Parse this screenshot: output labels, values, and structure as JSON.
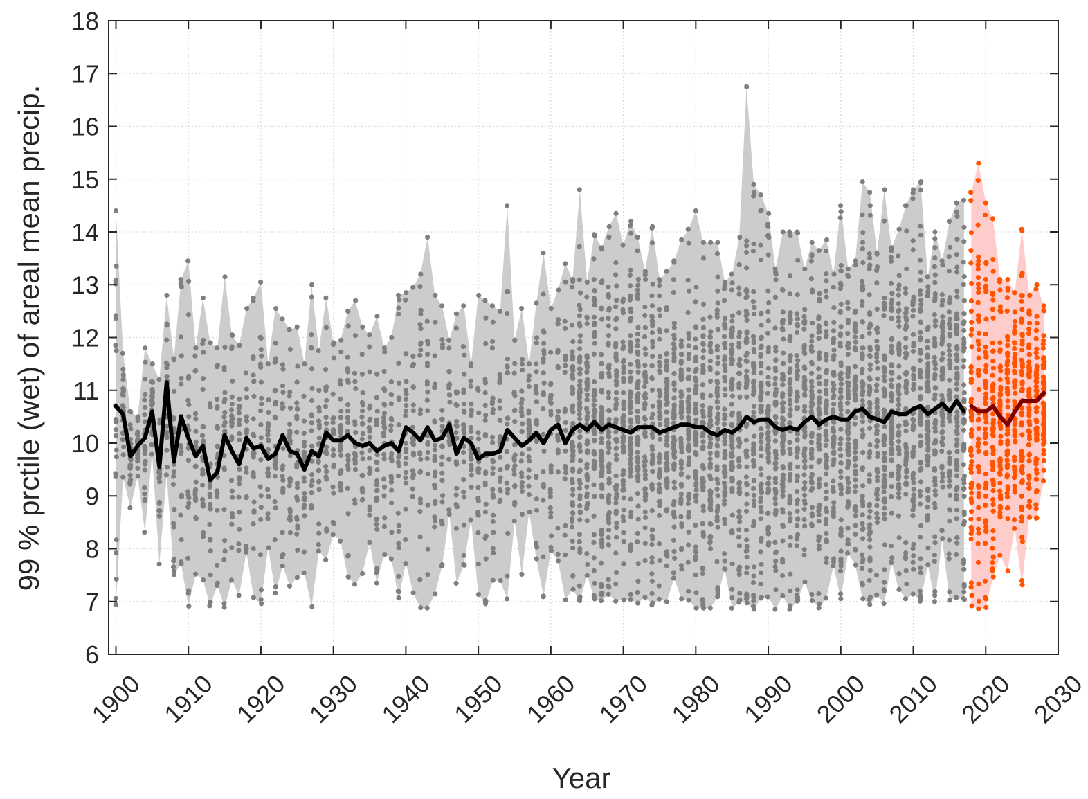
{
  "chart_data": {
    "type": "line",
    "title": "",
    "xlabel": "Year",
    "ylabel": "99 % prctile (wet) of areal mean precip.",
    "xlim": [
      1899,
      2030
    ],
    "ylim": [
      6,
      18
    ],
    "grid": true,
    "legend": "none",
    "x_ticks": [
      "1900",
      "1910",
      "1920",
      "1930",
      "1940",
      "1950",
      "1960",
      "1970",
      "1980",
      "1990",
      "2000",
      "2010",
      "2020",
      "2030"
    ],
    "y_ticks": [
      "6",
      "7",
      "8",
      "9",
      "10",
      "11",
      "12",
      "13",
      "14",
      "15",
      "16",
      "17",
      "18"
    ],
    "colors": {
      "observed_band": "#cccccc",
      "observed_points": "#7f7f7f",
      "observed_mean": "#000000",
      "forecast_band": "#ffcccc",
      "forecast_points": "#ff5500",
      "forecast_mean": "#800000"
    },
    "series": [
      {
        "role": "observed-mean",
        "x": [
          1900,
          1901,
          1902,
          1903,
          1904,
          1905,
          1906,
          1907,
          1908,
          1909,
          1910,
          1911,
          1912,
          1913,
          1914,
          1915,
          1916,
          1917,
          1918,
          1919,
          1920,
          1921,
          1922,
          1923,
          1924,
          1925,
          1926,
          1927,
          1928,
          1929,
          1930,
          1931,
          1932,
          1933,
          1934,
          1935,
          1936,
          1937,
          1938,
          1939,
          1940,
          1941,
          1942,
          1943,
          1944,
          1945,
          1946,
          1947,
          1948,
          1949,
          1950,
          1951,
          1952,
          1953,
          1954,
          1955,
          1956,
          1957,
          1958,
          1959,
          1960,
          1961,
          1962,
          1963,
          1964,
          1965,
          1966,
          1967,
          1968,
          1969,
          1970,
          1971,
          1972,
          1973,
          1974,
          1975,
          1976,
          1977,
          1978,
          1979,
          1980,
          1981,
          1982,
          1983,
          1984,
          1985,
          1986,
          1987,
          1988,
          1989,
          1990,
          1991,
          1992,
          1993,
          1994,
          1995,
          1996,
          1997,
          1998,
          1999,
          2000,
          2001,
          2002,
          2003,
          2004,
          2005,
          2006,
          2007,
          2008,
          2009,
          2010,
          2011,
          2012,
          2013,
          2014,
          2015,
          2016,
          2017
        ],
        "y": [
          10.7,
          10.55,
          9.75,
          9.95,
          10.1,
          10.6,
          9.55,
          11.15,
          9.65,
          10.5,
          10.1,
          9.75,
          9.95,
          9.3,
          9.45,
          10.15,
          9.85,
          9.6,
          10.1,
          9.9,
          9.95,
          9.7,
          9.8,
          10.15,
          9.85,
          9.8,
          9.5,
          9.85,
          9.75,
          10.2,
          10.05,
          10.05,
          10.15,
          10.0,
          9.95,
          10.0,
          9.85,
          9.95,
          10.0,
          9.85,
          10.3,
          10.2,
          10.05,
          10.3,
          10.05,
          10.1,
          10.35,
          9.8,
          10.1,
          10.0,
          9.7,
          9.8,
          9.8,
          9.85,
          10.25,
          10.1,
          9.95,
          10.05,
          10.2,
          10.0,
          10.25,
          10.35,
          10.0,
          10.25,
          10.35,
          10.25,
          10.4,
          10.25,
          10.35,
          10.3,
          10.25,
          10.2,
          10.3,
          10.3,
          10.3,
          10.2,
          10.25,
          10.3,
          10.35,
          10.35,
          10.3,
          10.3,
          10.2,
          10.15,
          10.25,
          10.2,
          10.3,
          10.5,
          10.4,
          10.45,
          10.45,
          10.3,
          10.25,
          10.3,
          10.25,
          10.4,
          10.5,
          10.35,
          10.45,
          10.5,
          10.45,
          10.45,
          10.6,
          10.65,
          10.5,
          10.45,
          10.4,
          10.6,
          10.55,
          10.55,
          10.65,
          10.7,
          10.55,
          10.65,
          10.75,
          10.6,
          10.8,
          10.6
        ]
      },
      {
        "role": "forecast-mean",
        "x": [
          2018,
          2019,
          2020,
          2021,
          2022,
          2023,
          2024,
          2025,
          2026,
          2027,
          2028
        ],
        "y": [
          10.7,
          10.6,
          10.6,
          10.7,
          10.5,
          10.35,
          10.6,
          10.8,
          10.8,
          10.8,
          10.95
        ]
      }
    ],
    "bands": [
      {
        "role": "observed-range",
        "x": [
          1900,
          1901,
          1902,
          1903,
          1904,
          1905,
          1906,
          1907,
          1908,
          1909,
          1910,
          1911,
          1912,
          1913,
          1914,
          1915,
          1916,
          1917,
          1918,
          1919,
          1920,
          1921,
          1922,
          1923,
          1924,
          1925,
          1926,
          1927,
          1928,
          1929,
          1930,
          1931,
          1932,
          1933,
          1934,
          1935,
          1936,
          1937,
          1938,
          1939,
          1940,
          1941,
          1942,
          1943,
          1944,
          1945,
          1946,
          1947,
          1948,
          1949,
          1950,
          1951,
          1952,
          1953,
          1954,
          1955,
          1956,
          1957,
          1958,
          1959,
          1960,
          1961,
          1962,
          1963,
          1964,
          1965,
          1966,
          1967,
          1968,
          1969,
          1970,
          1971,
          1972,
          1973,
          1974,
          1975,
          1976,
          1977,
          1978,
          1979,
          1980,
          1981,
          1982,
          1983,
          1984,
          1985,
          1986,
          1987,
          1988,
          1989,
          1990,
          1991,
          1992,
          1993,
          1994,
          1995,
          1996,
          1997,
          1998,
          1999,
          2000,
          2001,
          2002,
          2003,
          2004,
          2005,
          2006,
          2007,
          2008,
          2009,
          2010,
          2011,
          2012,
          2013,
          2014,
          2015,
          2016,
          2017
        ],
        "high": [
          14.4,
          11.7,
          10.6,
          10.5,
          11.8,
          11.5,
          11.2,
          12.8,
          11.6,
          13.1,
          13.45,
          11.8,
          12.75,
          11.9,
          11.8,
          13.15,
          12.05,
          11.85,
          12.55,
          12.75,
          13.05,
          11.5,
          12.55,
          12.35,
          12.15,
          12.2,
          11.5,
          13.0,
          11.75,
          12.75,
          11.9,
          11.95,
          12.5,
          12.7,
          12.2,
          12.05,
          12.4,
          11.8,
          12.0,
          12.8,
          12.85,
          12.95,
          13.2,
          13.9,
          12.8,
          12.6,
          11.95,
          12.45,
          12.6,
          11.5,
          12.8,
          12.7,
          12.6,
          12.5,
          14.5,
          11.95,
          12.55,
          11.5,
          12.65,
          13.6,
          12.55,
          12.9,
          13.4,
          13.1,
          14.8,
          13.05,
          13.95,
          13.7,
          14.1,
          14.35,
          13.75,
          14.2,
          13.9,
          13.25,
          14.1,
          13.1,
          13.25,
          13.45,
          13.85,
          14.05,
          14.4,
          13.8,
          13.8,
          13.8,
          13.05,
          13.2,
          13.9,
          16.75,
          14.9,
          14.7,
          14.35,
          13.3,
          14.0,
          14.0,
          14.0,
          13.3,
          13.8,
          13.65,
          13.85,
          13.2,
          14.5,
          13.3,
          13.45,
          14.95,
          14.75,
          13.6,
          14.8,
          13.7,
          14.05,
          14.5,
          14.8,
          14.95,
          13.15,
          14.0,
          13.45,
          14.2,
          14.55,
          14.6
        ]
      },
      {
        "role": "forecast-range",
        "x": [
          2018,
          2019,
          2020,
          2021,
          2022,
          2023,
          2024,
          2025,
          2026,
          2027,
          2028
        ],
        "high": [
          14.75,
          15.3,
          14.55,
          14.25,
          13.1,
          13.1,
          12.85,
          14.05,
          12.8,
          13.0,
          12.6
        ]
      }
    ]
  }
}
